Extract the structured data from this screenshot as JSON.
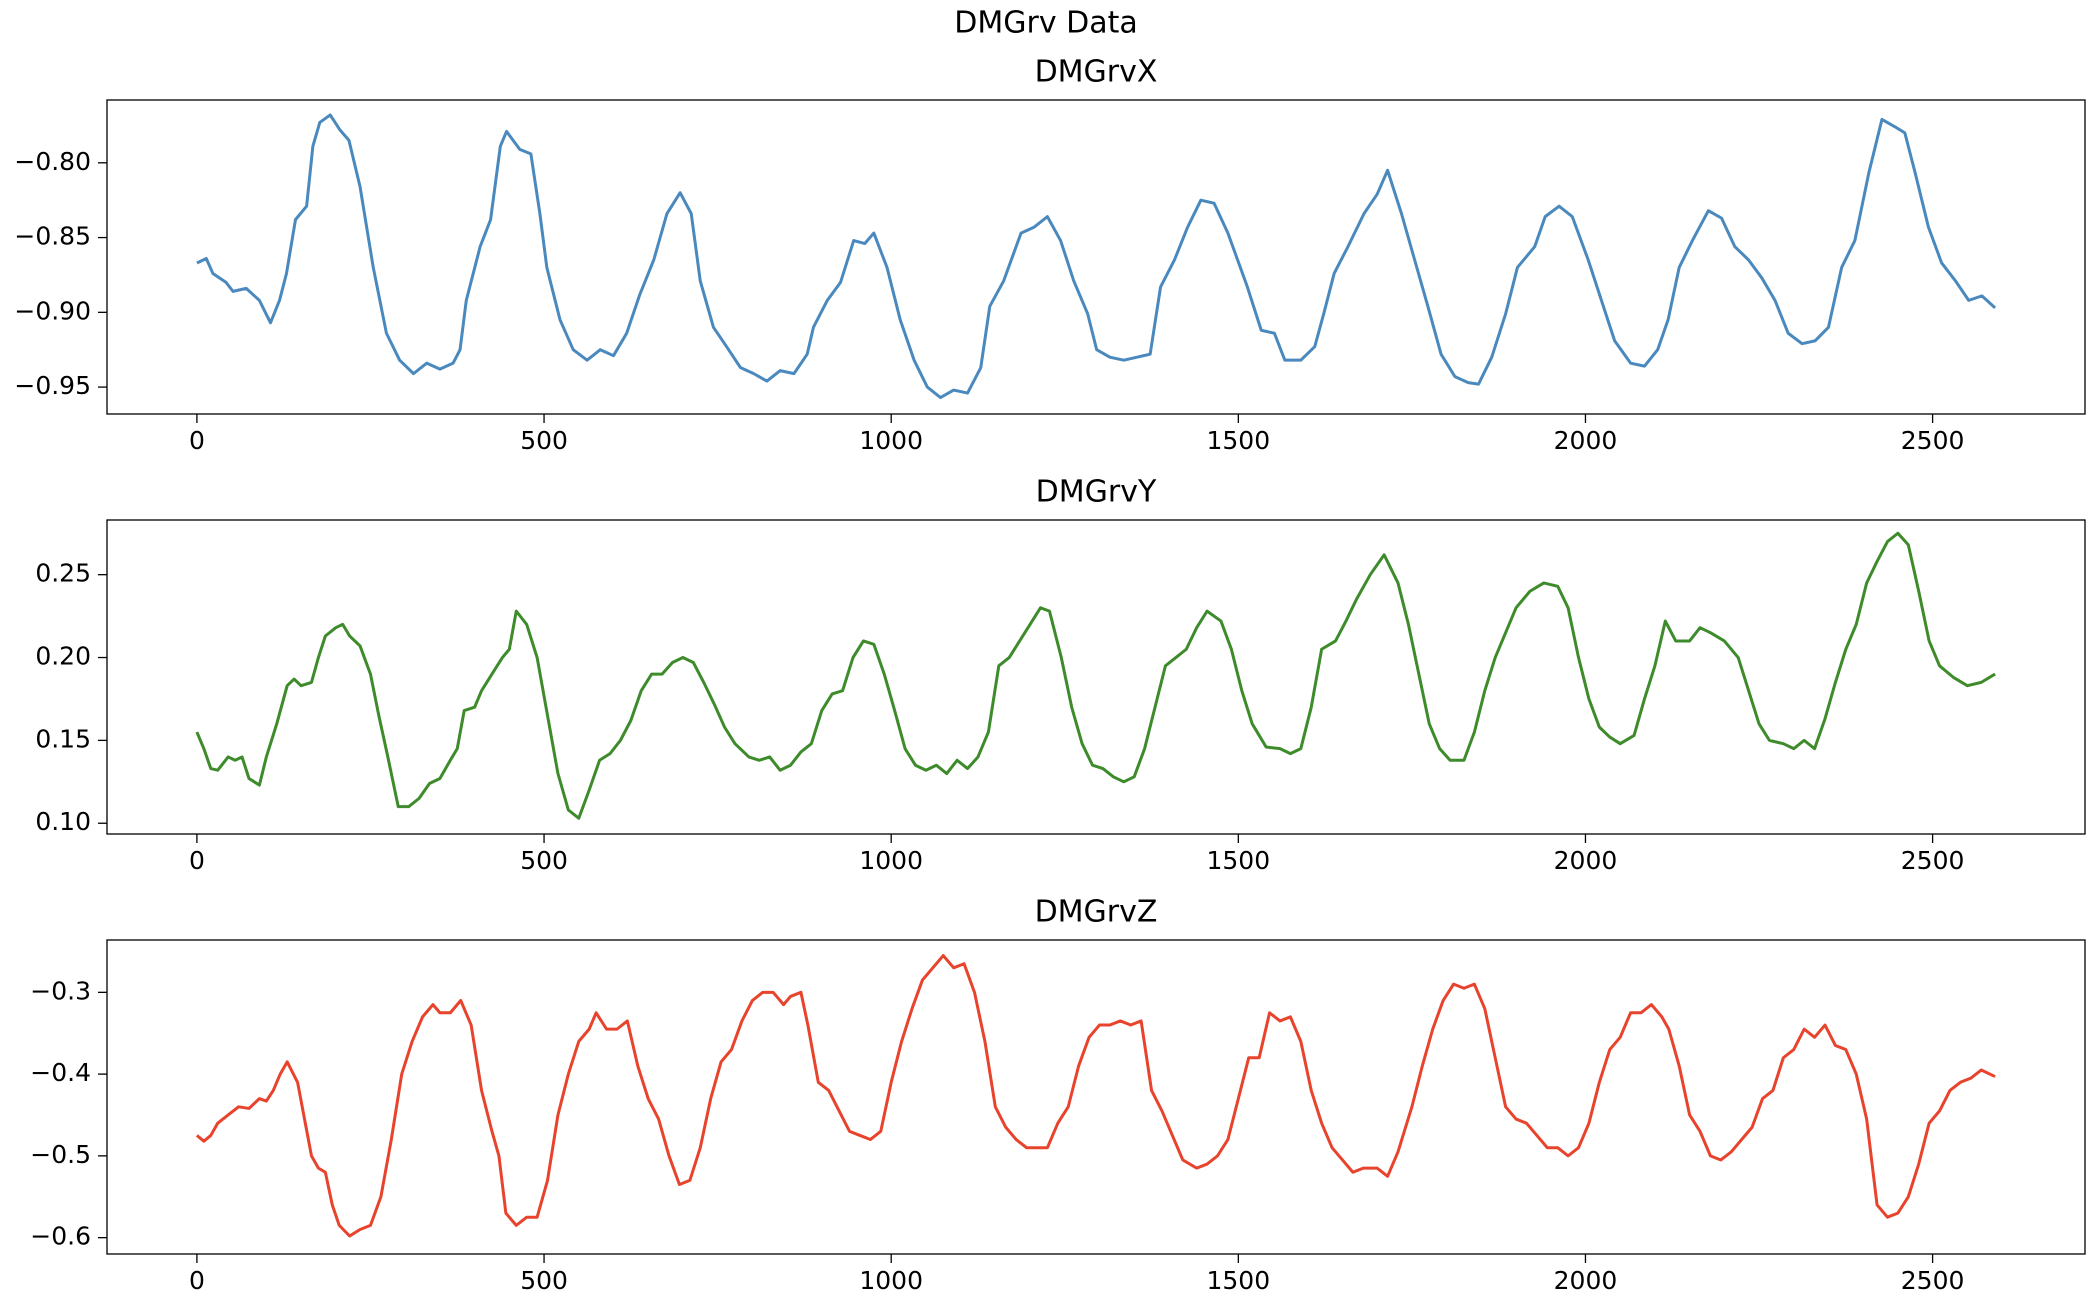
{
  "title": "DMGrv Data",
  "chart_data": [
    {
      "type": "line",
      "title": "DMGrvX",
      "grid": false,
      "xlim": [
        -129.5,
        2719.5
      ],
      "ylim": [
        -0.968,
        -0.758
      ],
      "xticks": [
        0,
        500,
        1000,
        1500,
        2000,
        2500
      ],
      "yticks": [
        {
          "value": -0.8,
          "label": "−0.80"
        },
        {
          "value": -0.85,
          "label": "−0.85"
        },
        {
          "value": -0.9,
          "label": "−0.90"
        },
        {
          "value": -0.95,
          "label": "−0.95"
        }
      ],
      "x": [
        0,
        13.5,
        23,
        42,
        52,
        71,
        90,
        106,
        119,
        129,
        142,
        158,
        167,
        177,
        192,
        206,
        219,
        235,
        254,
        273,
        292,
        312,
        331,
        350,
        369,
        379,
        388,
        408,
        423,
        437,
        446,
        465,
        481,
        494,
        504,
        523,
        542,
        562,
        581,
        600,
        619,
        638,
        658,
        677,
        696,
        712,
        725,
        744,
        763,
        783,
        802,
        821,
        840,
        860,
        879,
        888,
        908,
        927,
        946,
        962,
        975,
        994,
        1013,
        1033,
        1052,
        1071,
        1090,
        1110,
        1129,
        1142,
        1162,
        1187,
        1206,
        1225,
        1244,
        1263,
        1283,
        1296,
        1315,
        1335,
        1354,
        1373,
        1388,
        1408,
        1427,
        1446,
        1465,
        1485,
        1513,
        1533,
        1552,
        1567,
        1590,
        1610,
        1623,
        1638,
        1658,
        1681,
        1700,
        1715,
        1735,
        1754,
        1773,
        1792,
        1812,
        1831,
        1846,
        1865,
        1885,
        1902,
        1927,
        1942,
        1962,
        1981,
        2004,
        2023,
        2042,
        2065,
        2085,
        2104,
        2119,
        2135,
        2154,
        2177,
        2196,
        2215,
        2235,
        2254,
        2273,
        2292,
        2312,
        2331,
        2350,
        2369,
        2388,
        2408,
        2427,
        2446,
        2460,
        2475,
        2494,
        2513,
        2533,
        2552,
        2571,
        2590
      ],
      "series": [
        {
          "color": "#4a89be",
          "values": [
            -0.867,
            -0.864,
            -0.874,
            -0.88,
            -0.886,
            -0.884,
            -0.892,
            -0.907,
            -0.892,
            -0.874,
            -0.838,
            -0.829,
            -0.789,
            -0.773,
            -0.768,
            -0.778,
            -0.785,
            -0.816,
            -0.87,
            -0.914,
            -0.932,
            -0.941,
            -0.934,
            -0.938,
            -0.934,
            -0.925,
            -0.892,
            -0.856,
            -0.838,
            -0.789,
            -0.779,
            -0.791,
            -0.794,
            -0.834,
            -0.87,
            -0.905,
            -0.925,
            -0.932,
            -0.925,
            -0.929,
            -0.914,
            -0.888,
            -0.865,
            -0.834,
            -0.82,
            -0.834,
            -0.879,
            -0.91,
            -0.923,
            -0.937,
            -0.941,
            -0.946,
            -0.939,
            -0.941,
            -0.928,
            -0.91,
            -0.892,
            -0.88,
            -0.852,
            -0.854,
            -0.847,
            -0.87,
            -0.905,
            -0.932,
            -0.95,
            -0.957,
            -0.952,
            -0.954,
            -0.937,
            -0.896,
            -0.879,
            -0.847,
            -0.843,
            -0.836,
            -0.852,
            -0.879,
            -0.901,
            -0.925,
            -0.93,
            -0.932,
            -0.93,
            -0.928,
            -0.883,
            -0.865,
            -0.843,
            -0.825,
            -0.827,
            -0.847,
            -0.883,
            -0.912,
            -0.914,
            -0.932,
            -0.932,
            -0.923,
            -0.901,
            -0.874,
            -0.856,
            -0.834,
            -0.821,
            -0.805,
            -0.834,
            -0.865,
            -0.896,
            -0.928,
            -0.943,
            -0.947,
            -0.948,
            -0.93,
            -0.901,
            -0.87,
            -0.856,
            -0.836,
            -0.829,
            -0.836,
            -0.865,
            -0.892,
            -0.919,
            -0.934,
            -0.936,
            -0.925,
            -0.905,
            -0.87,
            -0.852,
            -0.832,
            -0.837,
            -0.856,
            -0.865,
            -0.877,
            -0.892,
            -0.914,
            -0.921,
            -0.919,
            -0.91,
            -0.87,
            -0.852,
            -0.807,
            -0.771,
            -0.776,
            -0.78,
            -0.807,
            -0.843,
            -0.867,
            -0.879,
            -0.892,
            -0.889,
            -0.897
          ]
        }
      ]
    },
    {
      "type": "line",
      "title": "DMGrvY",
      "grid": false,
      "xlim": [
        -129.5,
        2719.5
      ],
      "ylim": [
        0.0935,
        0.283
      ],
      "xticks": [
        0,
        500,
        1000,
        1500,
        2000,
        2500
      ],
      "yticks": [
        {
          "value": 0.1,
          "label": "0.10"
        },
        0.15,
        {
          "value": 0.2,
          "label": "0.20"
        },
        0.25
      ],
      "x": [
        0,
        10,
        20,
        30,
        45,
        55,
        65,
        75,
        90,
        100,
        115,
        130,
        140,
        150,
        165,
        175,
        185,
        200,
        210,
        220,
        235,
        250,
        262,
        275,
        290,
        305,
        320,
        335,
        350,
        365,
        375,
        385,
        400,
        410,
        425,
        440,
        450,
        460,
        475,
        490,
        505,
        520,
        535,
        550,
        565,
        580,
        595,
        610,
        625,
        640,
        655,
        670,
        685,
        700,
        715,
        730,
        745,
        760,
        775,
        795,
        810,
        825,
        840,
        855,
        870,
        885,
        900,
        915,
        930,
        945,
        960,
        975,
        990,
        1005,
        1020,
        1035,
        1050,
        1065,
        1080,
        1095,
        1110,
        1125,
        1140,
        1155,
        1170,
        1185,
        1200,
        1215,
        1228,
        1245,
        1260,
        1275,
        1290,
        1305,
        1320,
        1335,
        1350,
        1365,
        1380,
        1395,
        1410,
        1425,
        1440,
        1455,
        1475,
        1490,
        1505,
        1520,
        1540,
        1560,
        1575,
        1590,
        1605,
        1620,
        1640,
        1655,
        1670,
        1690,
        1710,
        1730,
        1745,
        1760,
        1775,
        1790,
        1805,
        1825,
        1840,
        1855,
        1870,
        1885,
        1900,
        1920,
        1940,
        1960,
        1975,
        1990,
        2005,
        2020,
        2035,
        2050,
        2070,
        2085,
        2100,
        2115,
        2130,
        2150,
        2165,
        2180,
        2200,
        2220,
        2235,
        2250,
        2265,
        2285,
        2300,
        2315,
        2330,
        2345,
        2360,
        2375,
        2390,
        2405,
        2420,
        2435,
        2450,
        2465,
        2480,
        2495,
        2510,
        2530,
        2550,
        2570,
        2590
      ],
      "series": [
        {
          "color": "#3d8b2b",
          "values": [
            0.155,
            0.145,
            0.133,
            0.132,
            0.14,
            0.138,
            0.14,
            0.127,
            0.123,
            0.14,
            0.16,
            0.183,
            0.187,
            0.183,
            0.185,
            0.2,
            0.213,
            0.218,
            0.22,
            0.213,
            0.207,
            0.19,
            0.165,
            0.14,
            0.11,
            0.11,
            0.115,
            0.124,
            0.127,
            0.138,
            0.145,
            0.168,
            0.17,
            0.18,
            0.19,
            0.2,
            0.205,
            0.228,
            0.22,
            0.2,
            0.165,
            0.13,
            0.108,
            0.103,
            0.12,
            0.138,
            0.142,
            0.15,
            0.162,
            0.18,
            0.19,
            0.19,
            0.197,
            0.2,
            0.197,
            0.185,
            0.172,
            0.158,
            0.148,
            0.14,
            0.138,
            0.14,
            0.132,
            0.135,
            0.143,
            0.148,
            0.168,
            0.178,
            0.18,
            0.2,
            0.21,
            0.208,
            0.19,
            0.168,
            0.145,
            0.135,
            0.132,
            0.135,
            0.13,
            0.138,
            0.133,
            0.14,
            0.155,
            0.195,
            0.2,
            0.21,
            0.22,
            0.23,
            0.228,
            0.2,
            0.17,
            0.148,
            0.135,
            0.133,
            0.128,
            0.125,
            0.128,
            0.145,
            0.17,
            0.195,
            0.2,
            0.205,
            0.218,
            0.228,
            0.222,
            0.205,
            0.18,
            0.16,
            0.146,
            0.145,
            0.142,
            0.145,
            0.17,
            0.205,
            0.21,
            0.222,
            0.235,
            0.25,
            0.262,
            0.245,
            0.22,
            0.19,
            0.16,
            0.145,
            0.138,
            0.138,
            0.155,
            0.18,
            0.2,
            0.215,
            0.23,
            0.24,
            0.245,
            0.243,
            0.23,
            0.2,
            0.175,
            0.158,
            0.152,
            0.148,
            0.153,
            0.175,
            0.195,
            0.222,
            0.21,
            0.21,
            0.218,
            0.215,
            0.21,
            0.2,
            0.18,
            0.16,
            0.15,
            0.148,
            0.145,
            0.15,
            0.145,
            0.163,
            0.185,
            0.205,
            0.22,
            0.245,
            0.258,
            0.27,
            0.275,
            0.268,
            0.24,
            0.21,
            0.195,
            0.188,
            0.183,
            0.185,
            0.19
          ]
        }
      ]
    },
    {
      "type": "line",
      "title": "DMGrvZ",
      "grid": false,
      "xlim": [
        -129.5,
        2719.5
      ],
      "ylim": [
        -0.62,
        -0.236
      ],
      "xticks": [
        0,
        500,
        1000,
        1500,
        2000,
        2500
      ],
      "yticks": [
        {
          "value": -0.3,
          "label": "−0.3"
        },
        {
          "value": -0.4,
          "label": "−0.4"
        },
        {
          "value": -0.5,
          "label": "−0.5"
        },
        {
          "value": -0.6,
          "label": "−0.6"
        }
      ],
      "x": [
        0,
        10,
        20,
        30,
        45,
        60,
        75,
        90,
        100,
        110,
        120,
        130,
        145,
        155,
        165,
        175,
        185,
        195,
        205,
        220,
        235,
        250,
        265,
        280,
        295,
        310,
        325,
        340,
        350,
        365,
        380,
        395,
        410,
        425,
        435,
        445,
        460,
        475,
        490,
        505,
        520,
        535,
        550,
        565,
        575,
        590,
        605,
        620,
        635,
        650,
        665,
        680,
        695,
        710,
        725,
        740,
        755,
        770,
        785,
        800,
        815,
        830,
        845,
        855,
        870,
        880,
        895,
        910,
        925,
        940,
        955,
        970,
        985,
        1000,
        1015,
        1030,
        1045,
        1060,
        1075,
        1090,
        1105,
        1120,
        1135,
        1150,
        1165,
        1180,
        1195,
        1210,
        1225,
        1240,
        1255,
        1270,
        1285,
        1300,
        1315,
        1330,
        1345,
        1360,
        1375,
        1390,
        1405,
        1420,
        1440,
        1455,
        1470,
        1485,
        1500,
        1515,
        1530,
        1545,
        1560,
        1575,
        1590,
        1605,
        1620,
        1635,
        1650,
        1665,
        1680,
        1700,
        1715,
        1730,
        1750,
        1765,
        1780,
        1795,
        1810,
        1825,
        1840,
        1855,
        1870,
        1885,
        1900,
        1915,
        1930,
        1945,
        1960,
        1975,
        1990,
        2005,
        2020,
        2035,
        2050,
        2065,
        2080,
        2095,
        2110,
        2120,
        2135,
        2150,
        2165,
        2180,
        2195,
        2210,
        2225,
        2240,
        2255,
        2270,
        2285,
        2300,
        2315,
        2330,
        2345,
        2360,
        2375,
        2390,
        2405,
        2420,
        2435,
        2450,
        2465,
        2480,
        2495,
        2510,
        2525,
        2540,
        2555,
        2570,
        2590
      ],
      "series": [
        {
          "color": "#e8432c",
          "values": [
            -0.475,
            -0.482,
            -0.475,
            -0.46,
            -0.45,
            -0.44,
            -0.442,
            -0.43,
            -0.433,
            -0.42,
            -0.4,
            -0.385,
            -0.41,
            -0.455,
            -0.5,
            -0.515,
            -0.52,
            -0.56,
            -0.585,
            -0.598,
            -0.59,
            -0.585,
            -0.55,
            -0.48,
            -0.4,
            -0.36,
            -0.33,
            -0.315,
            -0.325,
            -0.325,
            -0.31,
            -0.34,
            -0.42,
            -0.47,
            -0.5,
            -0.57,
            -0.585,
            -0.575,
            -0.575,
            -0.53,
            -0.45,
            -0.4,
            -0.36,
            -0.345,
            -0.325,
            -0.345,
            -0.345,
            -0.335,
            -0.39,
            -0.43,
            -0.455,
            -0.5,
            -0.535,
            -0.53,
            -0.49,
            -0.43,
            -0.385,
            -0.37,
            -0.335,
            -0.31,
            -0.3,
            -0.3,
            -0.315,
            -0.305,
            -0.3,
            -0.34,
            -0.41,
            -0.42,
            -0.445,
            -0.47,
            -0.475,
            -0.48,
            -0.47,
            -0.41,
            -0.36,
            -0.32,
            -0.285,
            -0.27,
            -0.255,
            -0.27,
            -0.265,
            -0.3,
            -0.36,
            -0.44,
            -0.465,
            -0.48,
            -0.49,
            -0.49,
            -0.49,
            -0.46,
            -0.44,
            -0.39,
            -0.355,
            -0.34,
            -0.34,
            -0.335,
            -0.34,
            -0.335,
            -0.42,
            -0.445,
            -0.475,
            -0.505,
            -0.515,
            -0.51,
            -0.5,
            -0.48,
            -0.43,
            -0.38,
            -0.38,
            -0.325,
            -0.335,
            -0.33,
            -0.36,
            -0.42,
            -0.46,
            -0.49,
            -0.505,
            -0.52,
            -0.515,
            -0.515,
            -0.525,
            -0.495,
            -0.44,
            -0.39,
            -0.345,
            -0.31,
            -0.29,
            -0.295,
            -0.29,
            -0.32,
            -0.38,
            -0.44,
            -0.455,
            -0.46,
            -0.475,
            -0.49,
            -0.49,
            -0.5,
            -0.49,
            -0.46,
            -0.41,
            -0.37,
            -0.355,
            -0.325,
            -0.325,
            -0.315,
            -0.33,
            -0.345,
            -0.39,
            -0.45,
            -0.47,
            -0.5,
            -0.505,
            -0.495,
            -0.48,
            -0.465,
            -0.43,
            -0.42,
            -0.38,
            -0.37,
            -0.345,
            -0.355,
            -0.34,
            -0.365,
            -0.37,
            -0.4,
            -0.455,
            -0.56,
            -0.575,
            -0.57,
            -0.55,
            -0.51,
            -0.46,
            -0.445,
            -0.42,
            -0.41,
            -0.405,
            -0.395,
            -0.403
          ]
        }
      ]
    }
  ]
}
